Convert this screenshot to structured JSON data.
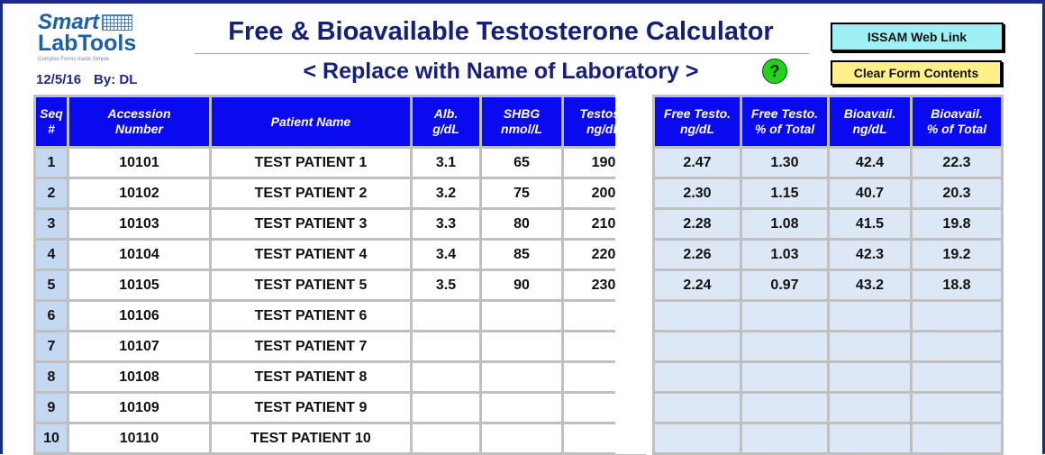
{
  "logo": {
    "smart": "Smart",
    "labtools": "LabTools",
    "tagline": "Complex Forms made Simple"
  },
  "meta": {
    "date": "12/5/16",
    "by": "By: DL"
  },
  "title": "Free & Bioavailable Testosterone Calculator",
  "lab_name": "< Replace with Name of Laboratory >",
  "help_button": {
    "label": "?"
  },
  "buttons": {
    "web_link": "ISSAM Web Link",
    "clear_form": "Clear Form Contents"
  },
  "input_table": {
    "headers": {
      "seq": [
        "Seq",
        "#"
      ],
      "accession": [
        "Accession",
        "Number"
      ],
      "patient": "Patient Name",
      "alb": [
        "Alb.",
        "g/dL"
      ],
      "shbg": [
        "SHBG",
        "nmol/L"
      ],
      "testost": [
        "Testost.",
        "ng/dL"
      ]
    },
    "rows": [
      {
        "seq": "1",
        "accession": "10101",
        "patient": "TEST PATIENT 1",
        "alb": "3.1",
        "shbg": "65",
        "testost": "190"
      },
      {
        "seq": "2",
        "accession": "10102",
        "patient": "TEST PATIENT 2",
        "alb": "3.2",
        "shbg": "75",
        "testost": "200"
      },
      {
        "seq": "3",
        "accession": "10103",
        "patient": "TEST PATIENT 3",
        "alb": "3.3",
        "shbg": "80",
        "testost": "210"
      },
      {
        "seq": "4",
        "accession": "10104",
        "patient": "TEST PATIENT 4",
        "alb": "3.4",
        "shbg": "85",
        "testost": "220"
      },
      {
        "seq": "5",
        "accession": "10105",
        "patient": "TEST PATIENT 5",
        "alb": "3.5",
        "shbg": "90",
        "testost": "230"
      },
      {
        "seq": "6",
        "accession": "10106",
        "patient": "TEST PATIENT 6",
        "alb": "",
        "shbg": "",
        "testost": ""
      },
      {
        "seq": "7",
        "accession": "10107",
        "patient": "TEST PATIENT 7",
        "alb": "",
        "shbg": "",
        "testost": ""
      },
      {
        "seq": "8",
        "accession": "10108",
        "patient": "TEST PATIENT 8",
        "alb": "",
        "shbg": "",
        "testost": ""
      },
      {
        "seq": "9",
        "accession": "10109",
        "patient": "TEST PATIENT 9",
        "alb": "",
        "shbg": "",
        "testost": ""
      },
      {
        "seq": "10",
        "accession": "10110",
        "patient": "TEST PATIENT 10",
        "alb": "",
        "shbg": "",
        "testost": ""
      }
    ]
  },
  "results_table": {
    "headers": {
      "free_testo": [
        "Free Testo.",
        "ng/dL"
      ],
      "free_pct": [
        "Free Testo.",
        "% of Total"
      ],
      "bioavail": [
        "Bioavail.",
        "ng/dL"
      ],
      "bioavail_pct": [
        "Bioavail.",
        "% of Total"
      ]
    },
    "rows": [
      {
        "free_testo": "2.47",
        "free_pct": "1.30",
        "bioavail": "42.4",
        "bioavail_pct": "22.3"
      },
      {
        "free_testo": "2.30",
        "free_pct": "1.15",
        "bioavail": "40.7",
        "bioavail_pct": "20.3"
      },
      {
        "free_testo": "2.28",
        "free_pct": "1.08",
        "bioavail": "41.5",
        "bioavail_pct": "19.8"
      },
      {
        "free_testo": "2.26",
        "free_pct": "1.03",
        "bioavail": "42.3",
        "bioavail_pct": "19.2"
      },
      {
        "free_testo": "2.24",
        "free_pct": "0.97",
        "bioavail": "43.2",
        "bioavail_pct": "18.8"
      },
      {
        "free_testo": "",
        "free_pct": "",
        "bioavail": "",
        "bioavail_pct": ""
      },
      {
        "free_testo": "",
        "free_pct": "",
        "bioavail": "",
        "bioavail_pct": ""
      },
      {
        "free_testo": "",
        "free_pct": "",
        "bioavail": "",
        "bioavail_pct": ""
      },
      {
        "free_testo": "",
        "free_pct": "",
        "bioavail": "",
        "bioavail_pct": ""
      },
      {
        "free_testo": "",
        "free_pct": "",
        "bioavail": "",
        "bioavail_pct": ""
      }
    ]
  },
  "colors": {
    "frame": "#1e2a8a",
    "title": "#15207a",
    "header_fill": "#0a0af0",
    "seq_fill": "#c5d8f2",
    "results_fill": "#dde8f7",
    "web_button": "#9ff0f4",
    "clear_button": "#fff08a",
    "help_button": "#23d21d"
  },
  "icons": {
    "help": "question-circle-icon",
    "logo_grid": "grid-icon"
  }
}
